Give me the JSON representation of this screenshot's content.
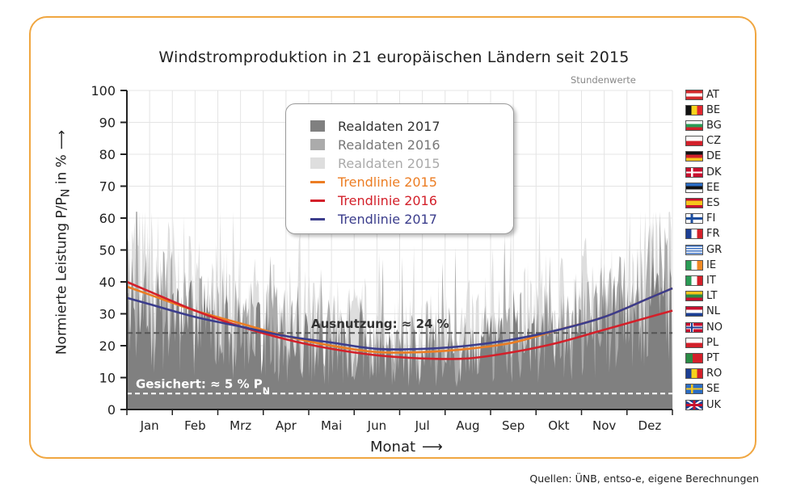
{
  "chart_data": {
    "type": "area",
    "title": "Windstromproduktion in 21 europäischen Ländern seit 2015",
    "subtitle": "Stundenwerte",
    "ylabel": "Normierte Leistung P/P",
    "ylabel_sub": "N",
    "ylabel_tail": " in %",
    "xlabel": "Monat",
    "ylim": [
      0,
      100
    ],
    "y_ticks": [
      "0",
      "10",
      "20",
      "30",
      "40",
      "50",
      "60",
      "70",
      "80",
      "90",
      "100"
    ],
    "categories": [
      "Jan",
      "Feb",
      "Mrz",
      "Apr",
      "Mai",
      "Jun",
      "Jul",
      "Aug",
      "Sep",
      "Okt",
      "Nov",
      "Dez"
    ],
    "grid": true,
    "series": [
      {
        "name": "Realdaten 2017",
        "kind": "area",
        "color": "#808080"
      },
      {
        "name": "Realdaten 2016",
        "kind": "area",
        "color": "#ababab"
      },
      {
        "name": "Realdaten 2015",
        "kind": "area",
        "color": "#dedede"
      },
      {
        "name": "Trendlinie 2015",
        "kind": "line",
        "color": "#ec7d23",
        "values": [
          36,
          31,
          27,
          23,
          20,
          18,
          18,
          19,
          21,
          25,
          29,
          35
        ]
      },
      {
        "name": "Trendlinie 2016",
        "kind": "line",
        "color": "#d3202a",
        "values": [
          37,
          31,
          26,
          22,
          19,
          17,
          16,
          16,
          18,
          21,
          25,
          29
        ]
      },
      {
        "name": "Trendlinie 2017",
        "kind": "line",
        "color": "#3b3d8c",
        "values": [
          33,
          29,
          26,
          23,
          21,
          19,
          19,
          20,
          22,
          25,
          29,
          35
        ]
      }
    ],
    "annotations": [
      {
        "text": "Ausnutzung: ≈ 24 %",
        "y": 24,
        "style": "dashed",
        "color": "#555555"
      },
      {
        "text": "Gesichert: ≈ 5 % P",
        "sub": "N",
        "y": 5,
        "style": "dashed",
        "color": "#ffffff"
      }
    ],
    "legend_position": "top-center"
  },
  "source": "Quellen: ÜNB, entso-e, eigene Berechnungen",
  "countries": [
    {
      "code": "AT",
      "flag": "at"
    },
    {
      "code": "BE",
      "flag": "be"
    },
    {
      "code": "BG",
      "flag": "bg"
    },
    {
      "code": "CZ",
      "flag": "cz"
    },
    {
      "code": "DE",
      "flag": "de"
    },
    {
      "code": "DK",
      "flag": "dk"
    },
    {
      "code": "EE",
      "flag": "ee"
    },
    {
      "code": "ES",
      "flag": "es"
    },
    {
      "code": "FI",
      "flag": "fi"
    },
    {
      "code": "FR",
      "flag": "fr"
    },
    {
      "code": "GR",
      "flag": "gr"
    },
    {
      "code": "IE",
      "flag": "ie"
    },
    {
      "code": "IT",
      "flag": "it"
    },
    {
      "code": "LT",
      "flag": "lt"
    },
    {
      "code": "NL",
      "flag": "nl"
    },
    {
      "code": "NO",
      "flag": "no"
    },
    {
      "code": "PL",
      "flag": "pl"
    },
    {
      "code": "PT",
      "flag": "pt"
    },
    {
      "code": "RO",
      "flag": "ro"
    },
    {
      "code": "SE",
      "flag": "se"
    },
    {
      "code": "UK",
      "flag": "uk"
    }
  ]
}
